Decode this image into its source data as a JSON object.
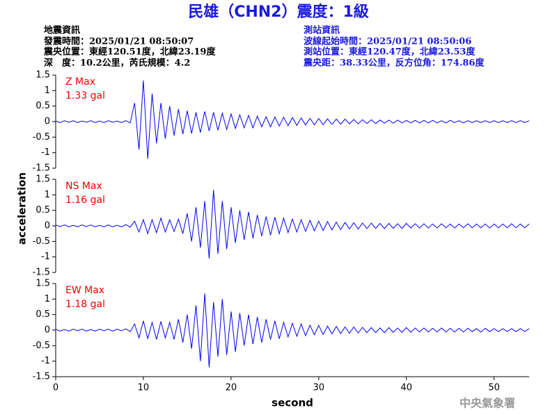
{
  "header": {
    "title": "民雄（CHN2）震度：1級",
    "left": [
      "地震資訊",
      "發震時間：2025/01/21 08:50:07",
      "震央位置：東經120.51度，北緯23.19度",
      "深　度：10.2公里，芮氏規模：4.2"
    ],
    "right": [
      "測站資訊",
      "波線起始時間：2025/01/21 08:50:06",
      "測站位置：東經120.47度，北緯23.53度",
      "震央距：38.33公里，反方位角：174.86度"
    ]
  },
  "x_label": "second",
  "y_label": "acceleration",
  "footer": "中央氣象署",
  "chart_data": [
    {
      "type": "line",
      "label": "Z Max",
      "max_label": "1.33 gal",
      "color": "#0000ff",
      "label_color": "#ee0000",
      "xlim": [
        0,
        54
      ],
      "ylim": [
        -1.5,
        1.5
      ],
      "yticks": [
        -1.5,
        -1,
        -0.5,
        0,
        0.5,
        1,
        1.5
      ],
      "x": [
        0,
        0.5,
        1,
        1.5,
        2,
        2.5,
        3,
        3.5,
        4,
        4.5,
        5,
        5.5,
        6,
        6.5,
        7,
        7.5,
        8,
        8.5,
        9,
        9.5,
        10,
        10.5,
        11,
        11.5,
        12,
        12.5,
        13,
        13.5,
        14,
        14.5,
        15,
        15.5,
        16,
        16.5,
        17,
        17.5,
        18,
        18.5,
        19,
        19.5,
        20,
        20.5,
        21,
        21.5,
        22,
        22.5,
        23,
        23.5,
        24,
        24.5,
        25,
        25.5,
        26,
        26.5,
        27,
        27.5,
        28,
        28.5,
        29,
        29.5,
        30,
        30.5,
        31,
        31.5,
        32,
        32.5,
        33,
        33.5,
        34,
        34.5,
        35,
        35.5,
        36,
        36.5,
        37,
        37.5,
        38,
        38.5,
        39,
        39.5,
        40,
        40.5,
        41,
        41.5,
        42,
        42.5,
        43,
        43.5,
        44,
        44.5,
        45,
        45.5,
        46,
        46.5,
        47,
        47.5,
        48,
        48.5,
        49,
        49.5,
        50,
        50.5,
        51,
        51.5,
        52,
        52.5,
        53,
        53.5,
        54
      ],
      "values": [
        0.02,
        -0.03,
        0.03,
        -0.02,
        0.03,
        -0.03,
        0.02,
        -0.02,
        0.03,
        -0.03,
        0.02,
        -0.03,
        0.03,
        -0.02,
        0.02,
        -0.03,
        0.03,
        -0.04,
        0.6,
        -0.9,
        1.33,
        -1.2,
        0.9,
        -0.7,
        0.6,
        -0.55,
        0.5,
        -0.45,
        0.4,
        -0.4,
        0.35,
        -0.38,
        0.3,
        -0.35,
        0.33,
        -0.3,
        0.3,
        -0.28,
        0.27,
        -0.25,
        0.25,
        -0.22,
        0.22,
        -0.2,
        0.2,
        -0.2,
        0.18,
        -0.17,
        0.16,
        -0.17,
        0.15,
        -0.14,
        0.14,
        -0.13,
        0.13,
        -0.12,
        0.12,
        -0.11,
        0.11,
        -0.1,
        0.1,
        -0.1,
        0.09,
        -0.09,
        0.08,
        -0.08,
        0.08,
        -0.07,
        0.07,
        -0.07,
        0.06,
        -0.06,
        0.06,
        -0.06,
        0.05,
        -0.05,
        0.05,
        -0.05,
        0.05,
        -0.04,
        0.04,
        -0.04,
        0.04,
        -0.04,
        0.04,
        -0.04,
        0.04,
        -0.04,
        0.03,
        -0.04,
        0.04,
        -0.03,
        0.03,
        -0.04,
        0.03,
        -0.03,
        0.03,
        -0.03,
        0.03,
        -0.03,
        0.03,
        -0.03,
        0.03,
        -0.03,
        0.03,
        -0.03,
        0.03,
        -0.03,
        0.03
      ]
    },
    {
      "type": "line",
      "label": "NS Max",
      "max_label": "1.16 gal",
      "color": "#0000ff",
      "label_color": "#ee0000",
      "xlim": [
        0,
        54
      ],
      "ylim": [
        -1.5,
        1.5
      ],
      "yticks": [
        -1.5,
        -1,
        -0.5,
        0,
        0.5,
        1,
        1.5
      ],
      "x": [
        0,
        0.5,
        1,
        1.5,
        2,
        2.5,
        3,
        3.5,
        4,
        4.5,
        5,
        5.5,
        6,
        6.5,
        7,
        7.5,
        8,
        8.5,
        9,
        9.5,
        10,
        10.5,
        11,
        11.5,
        12,
        12.5,
        13,
        13.5,
        14,
        14.5,
        15,
        15.5,
        16,
        16.5,
        17,
        17.5,
        18,
        18.5,
        19,
        19.5,
        20,
        20.5,
        21,
        21.5,
        22,
        22.5,
        23,
        23.5,
        24,
        24.5,
        25,
        25.5,
        26,
        26.5,
        27,
        27.5,
        28,
        28.5,
        29,
        29.5,
        30,
        30.5,
        31,
        31.5,
        32,
        32.5,
        33,
        33.5,
        34,
        34.5,
        35,
        35.5,
        36,
        36.5,
        37,
        37.5,
        38,
        38.5,
        39,
        39.5,
        40,
        40.5,
        41,
        41.5,
        42,
        42.5,
        43,
        43.5,
        44,
        44.5,
        45,
        45.5,
        46,
        46.5,
        47,
        47.5,
        48,
        48.5,
        49,
        49.5,
        50,
        50.5,
        51,
        51.5,
        52,
        52.5,
        53,
        53.5,
        54
      ],
      "values": [
        0.03,
        -0.02,
        0.03,
        -0.03,
        0.02,
        -0.03,
        0.03,
        -0.02,
        0.03,
        -0.03,
        0.02,
        -0.03,
        0.03,
        -0.03,
        0.02,
        -0.03,
        0.04,
        -0.04,
        0.15,
        -0.2,
        0.2,
        -0.25,
        0.2,
        -0.22,
        0.25,
        -0.2,
        0.2,
        -0.18,
        0.22,
        -0.25,
        0.4,
        -0.5,
        0.6,
        -0.7,
        0.8,
        -1.05,
        1.16,
        -0.9,
        0.8,
        -0.75,
        0.6,
        -0.55,
        0.5,
        -0.45,
        0.45,
        -0.4,
        0.35,
        -0.33,
        0.3,
        -0.3,
        0.28,
        -0.25,
        0.25,
        -0.22,
        0.22,
        -0.2,
        0.2,
        -0.18,
        0.18,
        -0.16,
        0.15,
        -0.15,
        0.14,
        -0.13,
        0.12,
        -0.12,
        0.11,
        -0.1,
        0.1,
        -0.1,
        0.09,
        -0.09,
        0.09,
        -0.08,
        0.08,
        -0.09,
        0.08,
        -0.08,
        0.07,
        -0.08,
        0.08,
        -0.07,
        0.07,
        -0.07,
        0.07,
        -0.07,
        0.06,
        -0.07,
        0.07,
        -0.06,
        0.06,
        -0.07,
        0.06,
        -0.06,
        0.07,
        -0.06,
        0.06,
        -0.06,
        0.06,
        -0.07,
        0.06,
        -0.06,
        0.06,
        -0.06,
        0.07,
        -0.06,
        0.06,
        -0.06,
        0.06
      ]
    },
    {
      "type": "line",
      "label": "EW Max",
      "max_label": "1.18 gal",
      "color": "#0000ff",
      "label_color": "#ee0000",
      "xlim": [
        0,
        54
      ],
      "ylim": [
        -1.5,
        1.5
      ],
      "yticks": [
        -1.5,
        -1,
        -0.5,
        0,
        0.5,
        1,
        1.5
      ],
      "xticks": [
        0,
        10,
        20,
        30,
        40,
        50
      ],
      "x": [
        0,
        0.5,
        1,
        1.5,
        2,
        2.5,
        3,
        3.5,
        4,
        4.5,
        5,
        5.5,
        6,
        6.5,
        7,
        7.5,
        8,
        8.5,
        9,
        9.5,
        10,
        10.5,
        11,
        11.5,
        12,
        12.5,
        13,
        13.5,
        14,
        14.5,
        15,
        15.5,
        16,
        16.5,
        17,
        17.5,
        18,
        18.5,
        19,
        19.5,
        20,
        20.5,
        21,
        21.5,
        22,
        22.5,
        23,
        23.5,
        24,
        24.5,
        25,
        25.5,
        26,
        26.5,
        27,
        27.5,
        28,
        28.5,
        29,
        29.5,
        30,
        30.5,
        31,
        31.5,
        32,
        32.5,
        33,
        33.5,
        34,
        34.5,
        35,
        35.5,
        36,
        36.5,
        37,
        37.5,
        38,
        38.5,
        39,
        39.5,
        40,
        40.5,
        41,
        41.5,
        42,
        42.5,
        43,
        43.5,
        44,
        44.5,
        45,
        45.5,
        46,
        46.5,
        47,
        47.5,
        48,
        48.5,
        49,
        49.5,
        50,
        50.5,
        51,
        51.5,
        52,
        52.5,
        53,
        53.5,
        54
      ],
      "values": [
        0.03,
        -0.03,
        0.02,
        -0.03,
        0.03,
        -0.02,
        0.03,
        -0.03,
        0.02,
        -0.03,
        0.03,
        -0.02,
        0.03,
        -0.03,
        0.03,
        -0.02,
        0.04,
        -0.05,
        0.2,
        -0.25,
        0.3,
        -0.28,
        0.25,
        -0.3,
        0.28,
        -0.25,
        0.25,
        -0.3,
        0.35,
        -0.4,
        0.5,
        -0.6,
        0.8,
        -1.0,
        1.18,
        -1.2,
        0.9,
        -0.85,
        1.0,
        -0.8,
        0.6,
        -0.7,
        0.55,
        -0.5,
        0.5,
        -0.45,
        0.42,
        -0.4,
        0.35,
        -0.3,
        0.3,
        -0.28,
        0.25,
        -0.22,
        0.22,
        -0.2,
        0.2,
        -0.18,
        0.16,
        -0.15,
        0.15,
        -0.14,
        0.13,
        -0.12,
        0.12,
        -0.11,
        0.1,
        -0.1,
        0.1,
        -0.09,
        0.09,
        -0.08,
        0.08,
        -0.08,
        0.07,
        -0.08,
        0.08,
        -0.07,
        0.07,
        -0.07,
        0.08,
        -0.07,
        0.07,
        -0.06,
        0.07,
        -0.06,
        0.06,
        -0.06,
        0.07,
        -0.06,
        0.06,
        -0.06,
        0.06,
        -0.06,
        0.06,
        -0.05,
        0.05,
        -0.06,
        0.06,
        -0.05,
        0.05,
        -0.05,
        0.05,
        -0.05,
        0.05,
        -0.05,
        0.05,
        -0.05,
        0.05
      ]
    }
  ]
}
